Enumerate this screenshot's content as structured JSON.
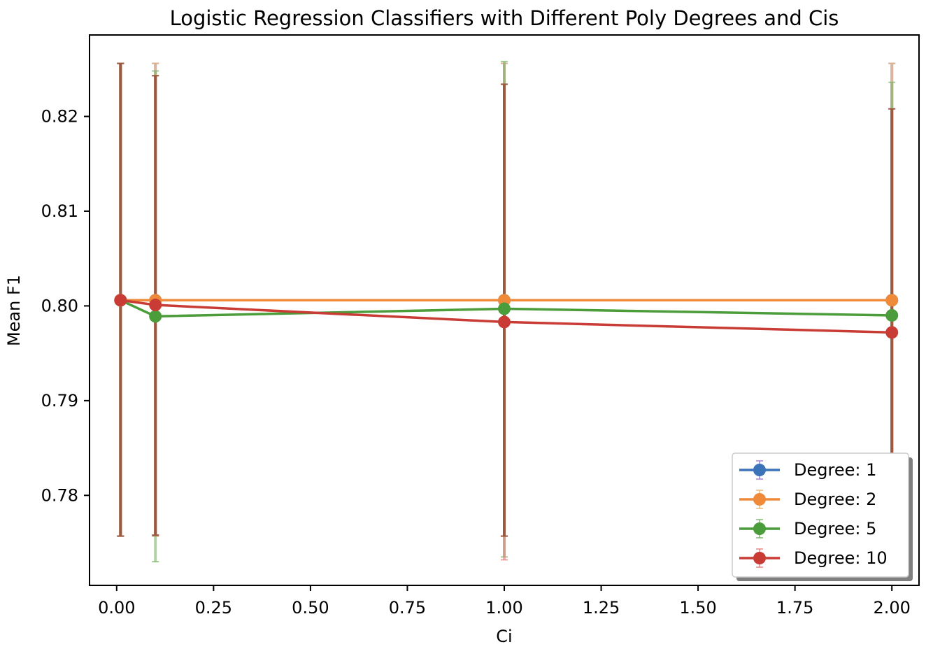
{
  "chart_data": {
    "type": "line",
    "title": "Logistic Regression Classifiers with Different Poly Degrees and Cis",
    "xlabel": "Ci",
    "ylabel": "Mean F1",
    "xlim": [
      -0.07,
      2.07
    ],
    "ylim": [
      0.7705,
      0.8286
    ],
    "x_ticks": [
      0.0,
      0.25,
      0.5,
      0.75,
      1.0,
      1.25,
      1.5,
      1.75,
      2.0
    ],
    "x_tick_labels": [
      "0.00",
      "0.25",
      "0.50",
      "0.75",
      "1.00",
      "1.25",
      "1.50",
      "1.75",
      "2.00"
    ],
    "y_ticks": [
      0.78,
      0.79,
      0.8,
      0.81,
      0.82
    ],
    "y_tick_labels": [
      "0.78",
      "0.79",
      "0.80",
      "0.81",
      "0.82"
    ],
    "grid": false,
    "legend_position": "lower-right",
    "x": [
      0.01,
      0.1,
      1.0,
      2.0
    ],
    "series": [
      {
        "name": "Degree: 1",
        "color": "#3b74b8",
        "err_color": "#9b7fd4",
        "values": [
          0.8006,
          0.8006,
          0.8006,
          0.8006
        ],
        "err_low": [
          0.7757,
          0.7757,
          0.7757,
          0.7757
        ],
        "err_high": [
          0.8256,
          0.8256,
          0.8256,
          0.8256
        ]
      },
      {
        "name": "Degree: 2",
        "color": "#ef8a3a",
        "err_color": "#e8b770",
        "values": [
          0.8006,
          0.8006,
          0.8006,
          0.8006
        ],
        "err_low": [
          0.7757,
          0.7757,
          0.7757,
          0.7757
        ],
        "err_high": [
          0.8256,
          0.8256,
          0.8256,
          0.8256
        ]
      },
      {
        "name": "Degree: 5",
        "color": "#4b9c3a",
        "err_color": "#7fb26a",
        "values": [
          0.8006,
          0.7989,
          0.7997,
          0.799
        ],
        "err_low": [
          0.7757,
          0.773,
          0.7735,
          0.776
        ],
        "err_high": [
          0.8256,
          0.8248,
          0.8258,
          0.8236
        ]
      },
      {
        "name": "Degree: 10",
        "color": "#c93c35",
        "err_color": "#e57f80",
        "values": [
          0.8006,
          0.8001,
          0.7983,
          0.7972
        ],
        "err_low": [
          0.7757,
          0.7758,
          0.7732,
          0.7723
        ],
        "err_high": [
          0.8256,
          0.8243,
          0.8234,
          0.8208
        ]
      }
    ],
    "overlap_bar": {
      "color": "#9b5a3f",
      "low": [
        0.7757,
        0.7758,
        0.7757,
        0.7757
      ],
      "high": [
        0.8256,
        0.8243,
        0.8234,
        0.8208
      ]
    }
  }
}
